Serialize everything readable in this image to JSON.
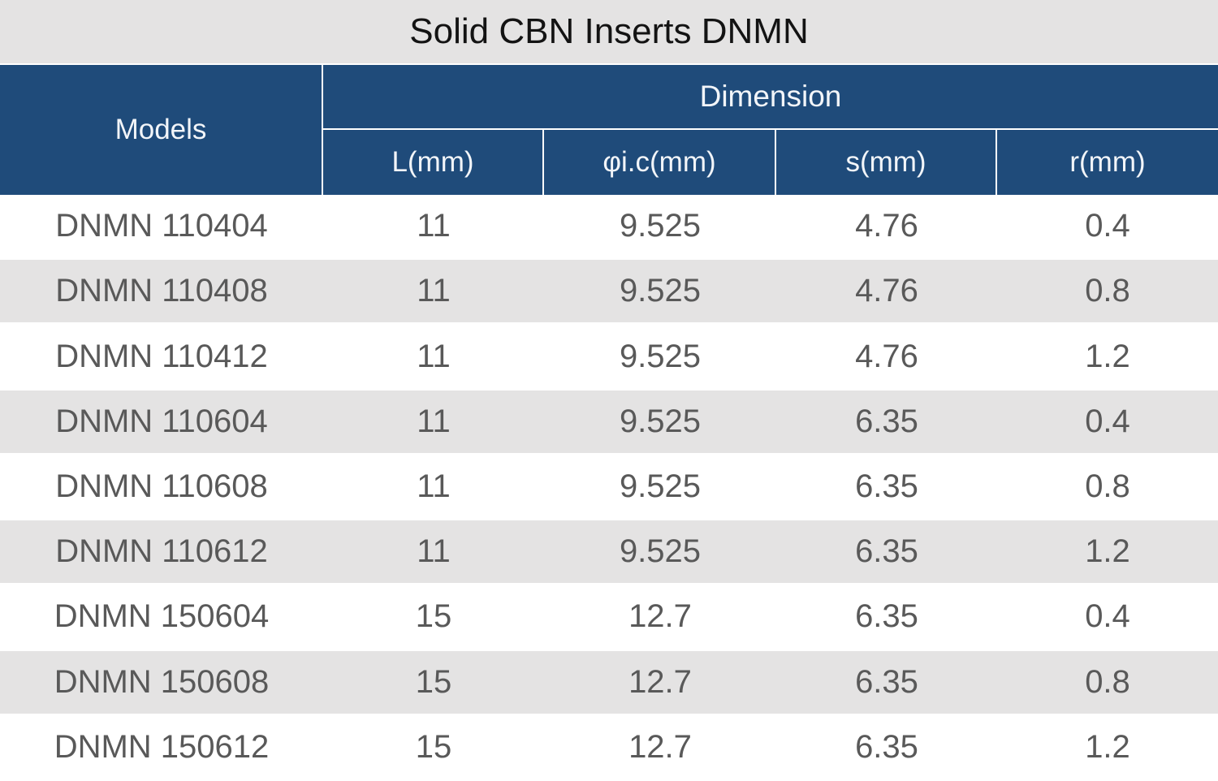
{
  "title": "Solid CBN Inserts DNMN",
  "table": {
    "models_header": "Models",
    "dimension_header": "Dimension",
    "columns": {
      "l": "L(mm)",
      "ic": "φi.c(mm)",
      "s": "s(mm)",
      "r": "r(mm)"
    },
    "rows": [
      {
        "model": "DNMN 110404",
        "l": "11",
        "ic": "9.525",
        "s": "4.76",
        "r": "0.4"
      },
      {
        "model": "DNMN 110408",
        "l": "11",
        "ic": "9.525",
        "s": "4.76",
        "r": "0.8"
      },
      {
        "model": "DNMN 110412",
        "l": "11",
        "ic": "9.525",
        "s": "4.76",
        "r": "1.2"
      },
      {
        "model": "DNMN 110604",
        "l": "11",
        "ic": "9.525",
        "s": "6.35",
        "r": "0.4"
      },
      {
        "model": "DNMN 110608",
        "l": "11",
        "ic": "9.525",
        "s": "6.35",
        "r": "0.8"
      },
      {
        "model": "DNMN 110612",
        "l": "11",
        "ic": "9.525",
        "s": "6.35",
        "r": "1.2"
      },
      {
        "model": "DNMN 150604",
        "l": "15",
        "ic": "12.7",
        "s": "6.35",
        "r": "0.4"
      },
      {
        "model": "DNMN 150608",
        "l": "15",
        "ic": "12.7",
        "s": "6.35",
        "r": "0.8"
      },
      {
        "model": "DNMN 150612",
        "l": "15",
        "ic": "12.7",
        "s": "6.35",
        "r": "1.2"
      }
    ]
  },
  "colors": {
    "header_bg": "#1f4b7a",
    "header_text": "#f2f5f9",
    "title_bar_bg": "#e4e3e3",
    "alt_row_bg": "#e4e3e3",
    "data_text": "#595959",
    "separator": "#ffffff"
  }
}
